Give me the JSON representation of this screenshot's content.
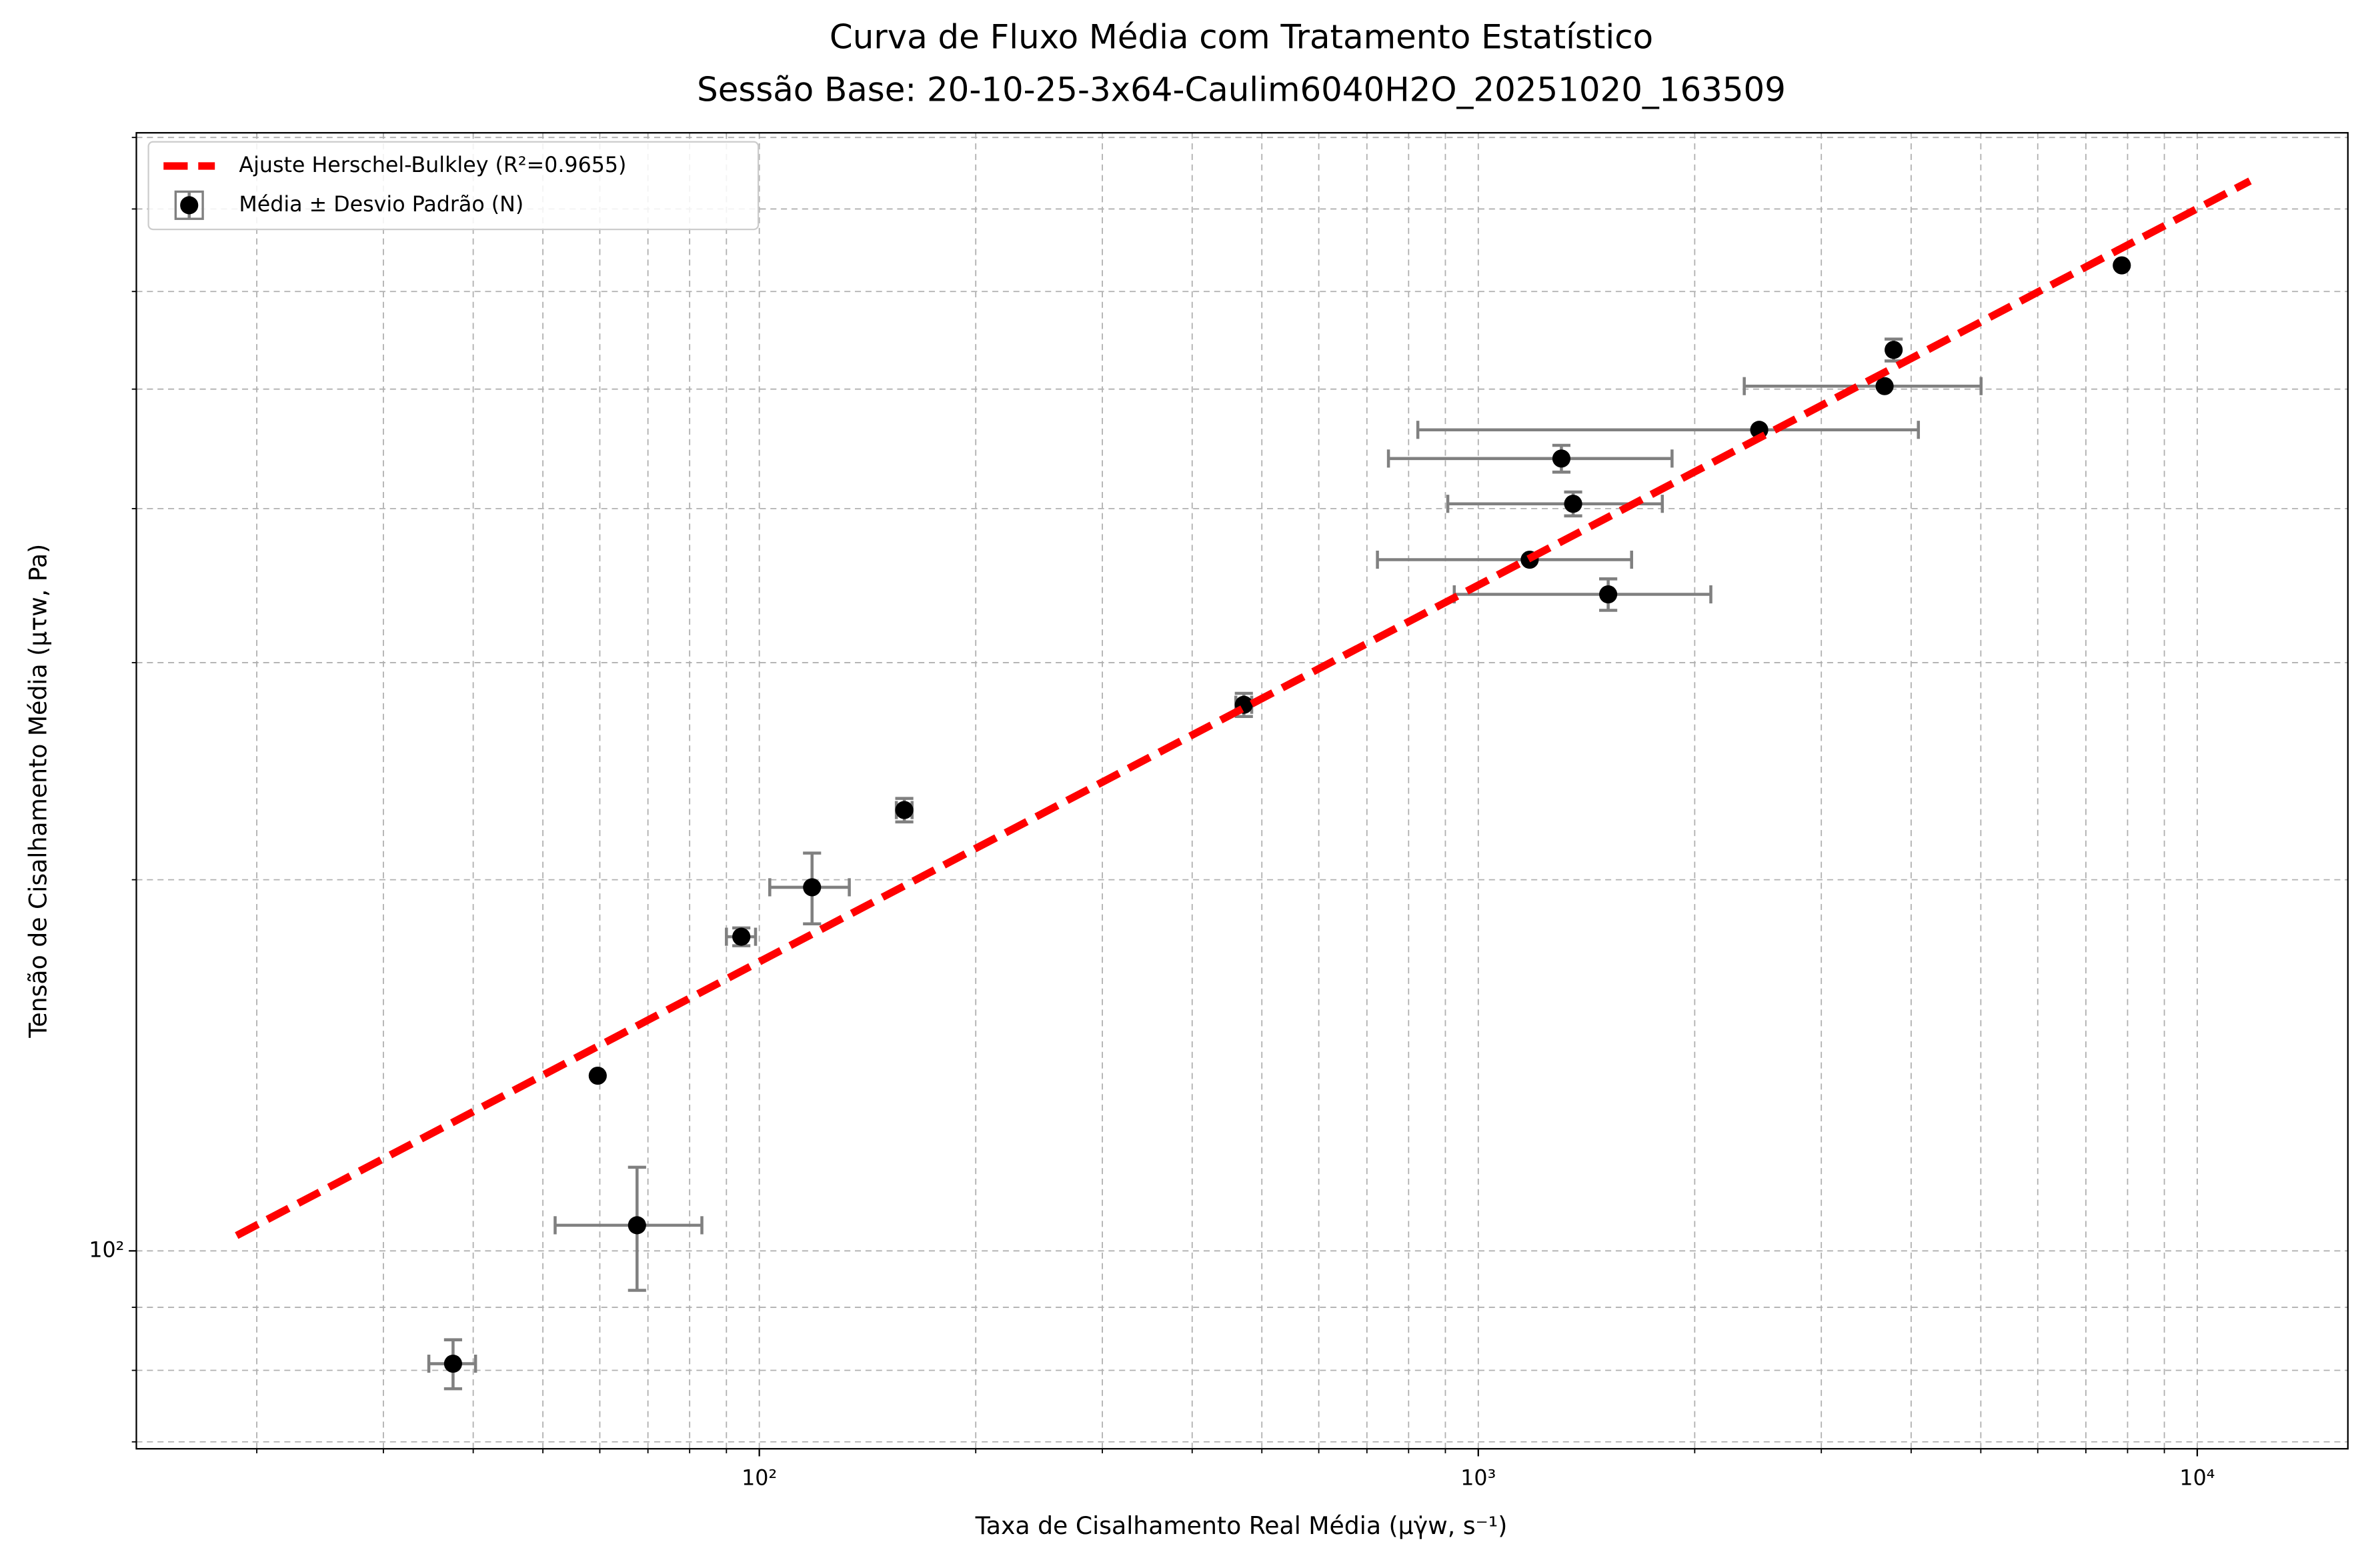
{
  "chart_data": {
    "type": "scatter",
    "title": [
      "Curva de Fluxo Média com Tratamento Estatístico",
      "Sessão Base: 20-10-25-3x64-Caulim6040H2O_20251020_163509"
    ],
    "xlabel": "Taxa de Cisalhamento Real Média (μγ̇w, s⁻¹)",
    "ylabel": "Tensão de Cisalhamento Média (μτw, Pa)",
    "xscale": "log",
    "yscale": "log",
    "grid": true,
    "legend": "upper left",
    "xlim": [
      13.6,
      16200
    ],
    "ylim": [
      69.1,
      807
    ],
    "xticks": [
      {
        "value": 100,
        "label": "10²"
      },
      {
        "value": 1000,
        "label": "10³"
      },
      {
        "value": 10000,
        "label": "10⁴"
      }
    ],
    "yticks": [
      {
        "value": 100,
        "label": "10²"
      }
    ],
    "xminorticks": [
      20,
      30,
      40,
      50,
      60,
      70,
      80,
      90,
      200,
      300,
      400,
      500,
      600,
      700,
      800,
      900,
      2000,
      3000,
      4000,
      5000,
      6000,
      7000,
      8000,
      9000
    ],
    "yminorticks": [
      70,
      80,
      90,
      200,
      300,
      400,
      500,
      600,
      700,
      800
    ],
    "series": [
      {
        "name": "Ajuste Herschel-Bulkley (R²=0.9655)",
        "color": "#ff0000",
        "type": "line",
        "x": [
          18.75,
          11840
        ],
        "values": [
          102.9,
          737.6
        ]
      },
      {
        "name": "Média ± Desvio Padrão (N)",
        "color": "#000000",
        "errcolor": "#808080",
        "type": "errorbar",
        "x": [
          37.5,
          59.6,
          67.6,
          94.4,
          118.4,
          159.1,
          472,
          1179,
          1355,
          1305,
          1516,
          2459,
          3674,
          3782,
          7853
        ],
        "values": [
          81.0,
          138.7,
          104.9,
          179.8,
          197.2,
          227.8,
          277.3,
          363.6,
          403.6,
          439.2,
          340.8,
          463.4,
          502.8,
          538,
          630
        ],
        "xerr": [
          2.8,
          0,
          15.6,
          4.4,
          15,
          4,
          12,
          455,
          448,
          555,
          590,
          1635,
          1330,
          0,
          0
        ],
        "yerr": [
          3.7,
          0,
          12,
          3,
          13,
          5,
          6,
          0,
          9,
          11,
          10,
          0,
          0,
          11,
          0
        ]
      }
    ]
  }
}
